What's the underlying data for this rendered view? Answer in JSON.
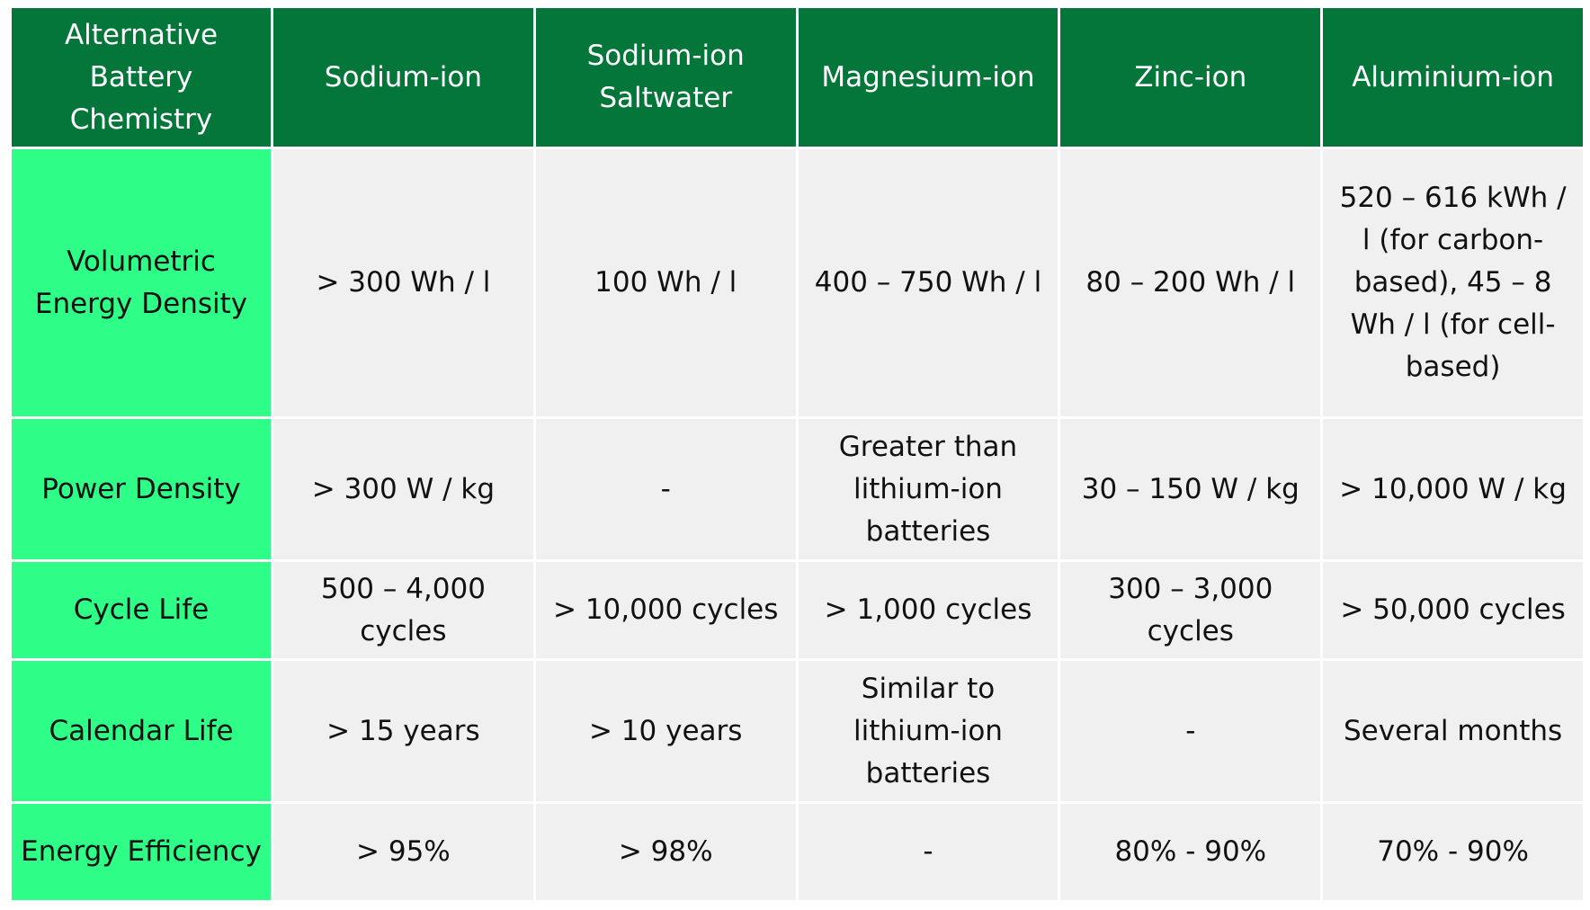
{
  "table": {
    "columns": [
      "Alternative Battery Chemistry",
      "Sodium-ion",
      "Sodium-ion Saltwater",
      "Magnesium-ion",
      "Zinc-ion",
      "Aluminium-ion"
    ],
    "rows": [
      {
        "label": "Volumetric Energy Density",
        "cells": [
          "> 300 Wh / l",
          "100 Wh / l",
          "400 – 750 Wh / l",
          "80 – 200 Wh / l",
          "520 – 616 kWh / l (for carbon-based), 45 – 8 Wh / l (for cell-based)"
        ]
      },
      {
        "label": "Power Density",
        "cells": [
          "> 300 W / kg",
          "-",
          "Greater than lithium-ion batteries",
          "30 – 150 W / kg",
          "> 10,000 W / kg"
        ]
      },
      {
        "label": "Cycle Life",
        "cells": [
          "500 – 4,000 cycles",
          "> 10,000 cycles",
          "> 1,000 cycles",
          "300 – 3,000 cycles",
          "> 50,000 cycles"
        ]
      },
      {
        "label": "Calendar Life",
        "cells": [
          "> 15 years",
          "> 10 years",
          "Similar to lithium-ion batteries",
          "-",
          "Several months"
        ]
      },
      {
        "label": "Energy Efficiency",
        "cells": [
          "> 95%",
          "> 98%",
          "-",
          "80% - 90%",
          "70% - 90%"
        ]
      }
    ]
  },
  "colors": {
    "header_bg": "#05763a",
    "header_text": "#ffffff",
    "row_label_bg": "#2efd88",
    "cell_bg": "#f0f0f0",
    "text": "#111111"
  }
}
